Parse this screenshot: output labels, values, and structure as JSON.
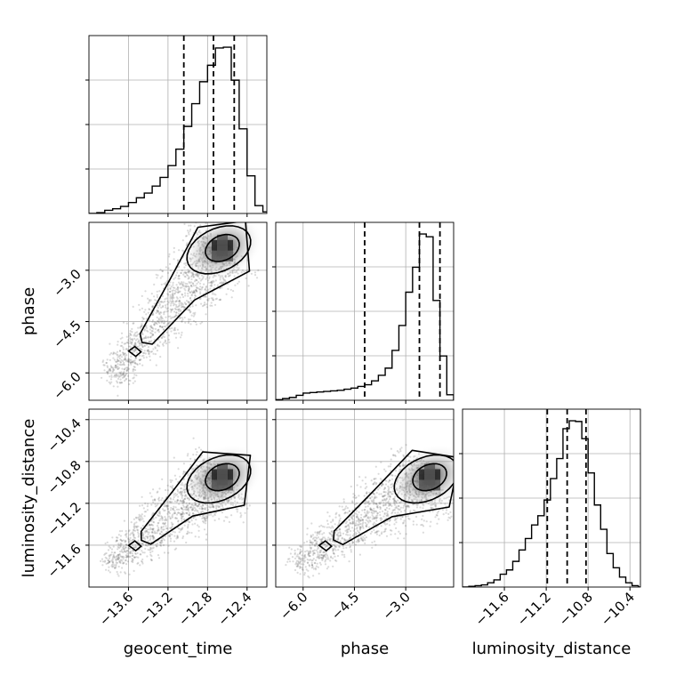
{
  "chart_data": {
    "type": "corner",
    "parameters": [
      "geocent_time",
      "phase",
      "luminosity_distance"
    ],
    "axes": {
      "geocent_time": {
        "range": [
          -14.0,
          -12.2
        ],
        "ticks": [
          -13.6,
          -13.2,
          -12.8,
          -12.4
        ],
        "tick_labels": [
          "−13.6",
          "−13.2",
          "−12.8",
          "−12.4"
        ]
      },
      "phase": {
        "range": [
          -6.8,
          -1.6
        ],
        "ticks": [
          -6.0,
          -4.5,
          -3.0
        ],
        "tick_labels": [
          "−6.0",
          "−4.5",
          "−3.0"
        ]
      },
      "luminosity_distance": {
        "range": [
          -12.0,
          -10.3
        ],
        "ticks": [
          -11.6,
          -11.2,
          -10.8,
          -10.4
        ],
        "tick_labels": [
          "−11.6",
          "−11.2",
          "−10.8",
          "−10.4"
        ]
      }
    },
    "grid": true,
    "histograms": {
      "geocent_time": {
        "bin_edges": [
          -14.0,
          -13.92,
          -13.84,
          -13.76,
          -13.68,
          -13.6,
          -13.52,
          -13.44,
          -13.36,
          -13.28,
          -13.2,
          -13.12,
          -13.04,
          -12.96,
          -12.88,
          -12.8,
          -12.72,
          -12.64,
          -12.56,
          -12.48,
          -12.4,
          -12.32,
          -12.24,
          -12.16
        ],
        "counts": [
          0,
          1,
          4,
          6,
          9,
          14,
          20,
          26,
          35,
          46,
          61,
          82,
          111,
          140,
          168,
          189,
          211,
          212,
          170,
          108,
          48,
          10,
          2
        ],
        "quantiles": [
          -13.04,
          -12.74,
          -12.53
        ]
      },
      "phase": {
        "bin_edges": [
          -6.8,
          -6.6,
          -6.4,
          -6.2,
          -6.0,
          -5.8,
          -5.6,
          -5.4,
          -5.2,
          -5.0,
          -4.8,
          -4.6,
          -4.4,
          -4.2,
          -4.0,
          -3.8,
          -3.6,
          -3.4,
          -3.2,
          -3.0,
          -2.8,
          -2.6,
          -2.4,
          -2.2,
          -2.0,
          -1.8,
          -1.6
        ],
        "counts": [
          1,
          3,
          5,
          9,
          13,
          14,
          15,
          16,
          17,
          18,
          20,
          22,
          25,
          28,
          35,
          45,
          58,
          90,
          135,
          195,
          240,
          300,
          295,
          180,
          80,
          10
        ],
        "quantiles": [
          -4.2,
          -2.6,
          -2.0
        ]
      },
      "luminosity_distance": {
        "bin_edges": [
          -12.0,
          -11.94,
          -11.88,
          -11.82,
          -11.76,
          -11.7,
          -11.64,
          -11.58,
          -11.52,
          -11.46,
          -11.4,
          -11.34,
          -11.28,
          -11.22,
          -11.16,
          -11.1,
          -11.04,
          -10.98,
          -10.92,
          -10.86,
          -10.8,
          -10.74,
          -10.68,
          -10.62,
          -10.56,
          -10.5,
          -10.44,
          -10.38,
          -10.32,
          -10.26
        ],
        "counts": [
          0,
          1,
          2,
          3,
          6,
          10,
          18,
          24,
          36,
          52,
          68,
          87,
          100,
          122,
          152,
          180,
          222,
          233,
          232,
          208,
          160,
          115,
          81,
          47,
          27,
          14,
          6,
          2,
          0
        ],
        "quantiles": [
          -11.19,
          -11.0,
          -10.82
        ]
      }
    },
    "pairs": [
      {
        "x": "geocent_time",
        "y": "phase",
        "peak": [
          -12.65,
          -2.35
        ]
      },
      {
        "x": "geocent_time",
        "y": "luminosity_distance",
        "peak": [
          -12.65,
          -10.95
        ]
      },
      {
        "x": "phase",
        "y": "luminosity_distance",
        "peak": [
          -2.3,
          -10.95
        ]
      }
    ]
  }
}
